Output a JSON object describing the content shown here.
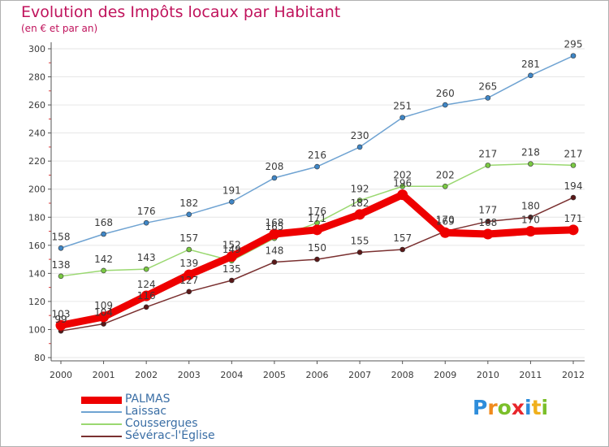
{
  "title": "Evolution des Impôts locaux par Habitant",
  "subtitle": "(en € et par an)",
  "logo": "Proxiti",
  "colors": {
    "title": "#c0135c",
    "axis": "#555555",
    "grid": "#e6e6e6",
    "label": "#3a3a3a",
    "legend_text": "#3a6ea5"
  },
  "chart_data": {
    "type": "line",
    "title": "Evolution des Impôts locaux par Habitant",
    "subtitle": "(en € et par an)",
    "x": [
      2000,
      2001,
      2002,
      2003,
      2004,
      2005,
      2006,
      2007,
      2008,
      2009,
      2010,
      2011,
      2012
    ],
    "ylim": [
      80,
      300
    ],
    "yticks": [
      80,
      100,
      120,
      140,
      160,
      180,
      200,
      220,
      240,
      260,
      280,
      300
    ],
    "grid": true,
    "legend_position": "bottom-left",
    "series": [
      {
        "name": "PALMAS",
        "values": [
          103,
          109,
          124,
          139,
          152,
          168,
          171,
          182,
          196,
          169,
          168,
          170,
          171
        ],
        "color": "#ee0000",
        "marker": "#ee0000",
        "width": 9
      },
      {
        "name": "Laissac",
        "values": [
          158,
          168,
          176,
          182,
          191,
          208,
          216,
          230,
          251,
          260,
          265,
          281,
          295
        ],
        "color": "#6fa3d2",
        "marker": "#3f86c6",
        "width": 1.5
      },
      {
        "name": "Coussergues",
        "values": [
          138,
          142,
          143,
          157,
          149,
          165,
          176,
          192,
          202,
          202,
          217,
          218,
          217
        ],
        "color": "#9ad870",
        "marker": "#7ac943",
        "width": 1.5
      },
      {
        "name": "Sévérac-l'Église",
        "values": [
          99,
          104,
          116,
          127,
          135,
          148,
          150,
          155,
          157,
          170,
          177,
          180,
          194
        ],
        "color": "#7a3030",
        "marker": "#5a1818",
        "width": 1.5
      }
    ],
    "value_labels": [
      [
        103,
        109,
        124,
        139,
        152,
        168,
        171,
        182,
        196,
        169,
        168,
        170,
        171
      ],
      [
        158,
        168,
        176,
        182,
        191,
        208,
        216,
        230,
        251,
        260,
        265,
        281,
        295
      ],
      [
        138,
        142,
        143,
        157,
        149,
        165,
        176,
        192,
        202,
        202,
        217,
        218,
        217
      ],
      [
        99,
        104,
        116,
        127,
        135,
        148,
        150,
        155,
        157,
        170,
        177,
        180,
        194
      ]
    ]
  }
}
